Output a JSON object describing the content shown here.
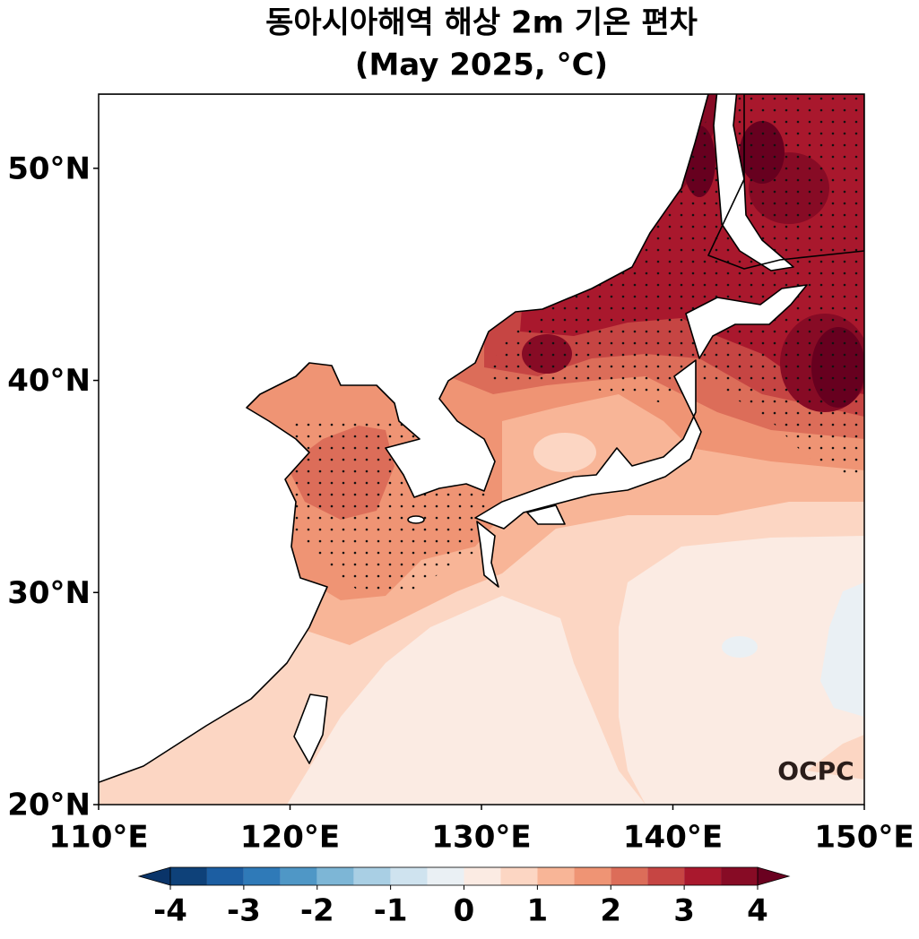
{
  "title": "동아시아해역 해상 2m 기온 편차",
  "subtitle": "(May 2025, °C)",
  "map": {
    "xlim": [
      110,
      150
    ],
    "ylim": [
      20,
      53.5
    ],
    "xticks": [
      {
        "value": 110,
        "label": "110°E"
      },
      {
        "value": 120,
        "label": "120°E"
      },
      {
        "value": 130,
        "label": "130°E"
      },
      {
        "value": 140,
        "label": "140°E"
      },
      {
        "value": 150,
        "label": "150°E"
      }
    ],
    "yticks": [
      {
        "value": 20,
        "label": "20°N"
      },
      {
        "value": 30,
        "label": "30°N"
      },
      {
        "value": 40,
        "label": "40°N"
      },
      {
        "value": 50,
        "label": "50°N"
      }
    ]
  },
  "colorbar": {
    "levels": [
      -4,
      -3.5,
      -3,
      -2.5,
      -2,
      -1.5,
      -1,
      -0.5,
      0,
      0.5,
      1,
      1.5,
      2,
      2.5,
      3,
      3.5,
      4
    ],
    "colors": [
      "#0e4179",
      "#1c5ea2",
      "#2f7ab8",
      "#4f97c6",
      "#7db6d6",
      "#a9cfe4",
      "#cfe3ef",
      "#eaf0f4",
      "#fbebe3",
      "#fcd6c3",
      "#f8b597",
      "#ef9474",
      "#dc6d59",
      "#c64543",
      "#a9182d",
      "#870b25"
    ],
    "under_color": "#0a3469",
    "over_color": "#6a0120",
    "ticks": [
      -4,
      -3,
      -2,
      -1,
      0,
      1,
      2,
      3,
      4
    ]
  },
  "logo": "OCPC"
}
